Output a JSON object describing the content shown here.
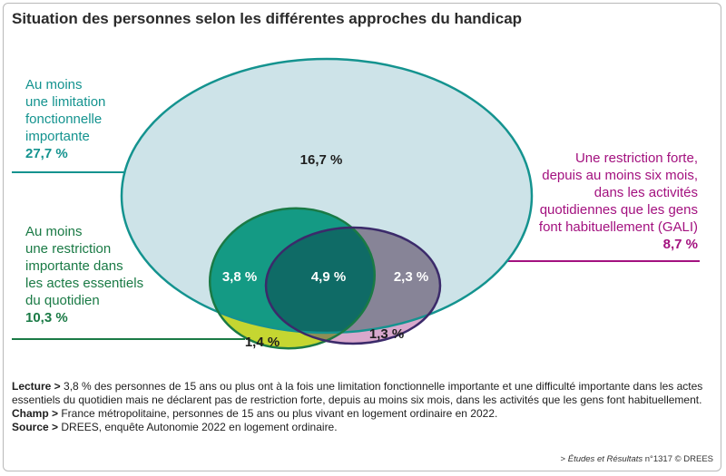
{
  "title": "Situation des personnes selon les différentes approches du handicap",
  "chart_data": {
    "type": "venn",
    "sets": [
      {
        "name": "Au moins une limitation fonctionnelle importante",
        "label_lines": [
          "Au moins",
          "une limitation",
          "fonctionnelle",
          "importante"
        ],
        "total": "27,7 %",
        "color": "#14938f"
      },
      {
        "name": "Au moins une restriction importante dans les actes essentiels du quotidien",
        "label_lines": [
          "Au moins",
          "une restriction",
          "importante dans",
          "les actes essentiels",
          "du quotidien"
        ],
        "total": "10,3 %",
        "color": "#1a7a45"
      },
      {
        "name": "Une restriction forte, depuis au moins six mois, dans les activités quotidiennes que les gens font habituellement (GALI)",
        "label_lines": [
          "Une restriction forte,",
          "depuis au moins six mois,",
          "dans les activités",
          "quotidiennes que les gens",
          "font habituellement (GALI)"
        ],
        "total": "8,7 %",
        "color": "#a3117f"
      }
    ],
    "regions": [
      {
        "sets": [
          "limitation"
        ],
        "value": 16.7,
        "label": "16,7 %"
      },
      {
        "sets": [
          "limitation",
          "restriction"
        ],
        "value": 3.8,
        "label": "3,8 %"
      },
      {
        "sets": [
          "limitation",
          "restriction",
          "gali"
        ],
        "value": 4.9,
        "label": "4,9 %"
      },
      {
        "sets": [
          "limitation",
          "gali"
        ],
        "value": 2.3,
        "label": "2,3 %"
      },
      {
        "sets": [
          "restriction"
        ],
        "value": 1.4,
        "label": "1,4 %"
      },
      {
        "sets": [
          "gali"
        ],
        "value": 1.3,
        "label": "1,3 %"
      }
    ]
  },
  "notes": {
    "lecture_key": "Lecture >",
    "lecture_text": " 3,8 % des personnes de 15 ans ou plus ont à la fois une limitation fonctionnelle importante et une difficulté importante dans les actes essentiels du quotidien mais ne déclarent pas de restriction forte, depuis au moins six mois, dans les activités que les gens font habituellement.",
    "champ_key": "Champ >",
    "champ_text": " France métropolitaine, personnes de 15 ans ou plus vivant en logement ordinaire en 2022.",
    "source_key": "Source >",
    "source_text": " DREES, enquête Autonomie 2022 en logement ordinaire."
  },
  "footer": {
    "prefix": "> ",
    "publication": "Études et Résultats",
    "suffix": " n°1317 © DREES"
  },
  "colors": {
    "limitation_fill": "#cde3e8",
    "limitation_stroke": "#14938f",
    "restriction_fill": "#c5d631",
    "restriction_stroke": "#1a7a45",
    "gali_fill": "#d8a8cc",
    "gali_stroke": "#a3117f",
    "lim_restr": "#149a84",
    "lim_gali": "#878497",
    "triple": "#0f6b66"
  }
}
